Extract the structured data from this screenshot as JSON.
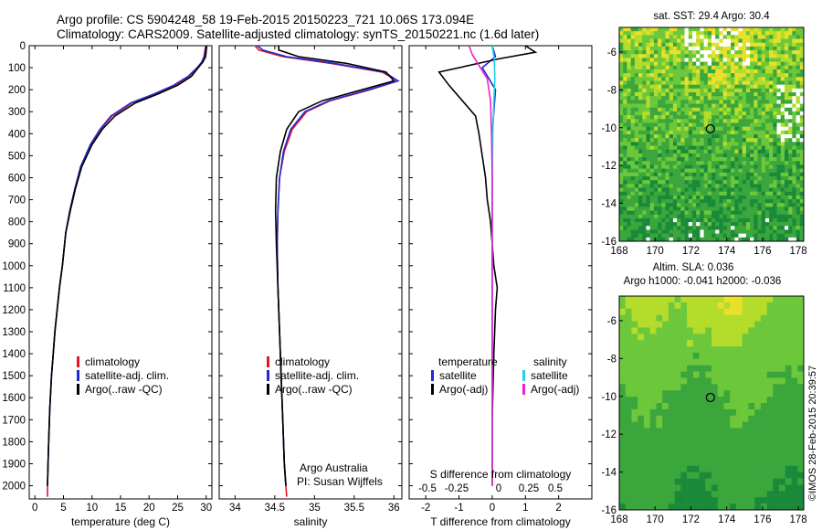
{
  "header": {
    "line1": "Argo profile: CS 5904248_58 19-Feb-2015 20150223_721 10.06S 173.094E",
    "line2": "Climatology: CARS2009. Satellite-adjusted climatology: synTS_20150221.nc (1.6d later)"
  },
  "colors": {
    "climatology": "#e8141e",
    "satellite": "#1f2bd6",
    "argo": "#000000",
    "satellite_salinity": "#22d3e6",
    "argo_salinity": "#ee22cc"
  },
  "chart_data": [
    {
      "type": "line",
      "id": "temperature",
      "xlabel": "temperature (deg C)",
      "ylabel": "",
      "xlim": [
        -1,
        31
      ],
      "ylim": [
        2060,
        0
      ],
      "xticks": [
        0,
        5,
        10,
        15,
        20,
        25,
        30
      ],
      "yticks": [
        0,
        100,
        200,
        300,
        400,
        500,
        600,
        700,
        800,
        900,
        1000,
        1100,
        1200,
        1300,
        1400,
        1500,
        1600,
        1700,
        1800,
        1900,
        2000
      ],
      "legend": [
        "climatology",
        "satellite-adj. clim.",
        "Argo(..raw -QC)"
      ],
      "series": [
        {
          "name": "climatology",
          "color": "#e8141e",
          "x": [
            29.9,
            29.6,
            29.2,
            28.5,
            27.0,
            24.5,
            21.0,
            17.0,
            13.5,
            11.5,
            9.8,
            8.0,
            7.0,
            6.1,
            5.4,
            4.8,
            4.3,
            3.9,
            3.5,
            3.2,
            2.9,
            2.6,
            2.4,
            2.3,
            2.2,
            2.2
          ],
          "y": [
            0,
            50,
            75,
            100,
            140,
            180,
            220,
            260,
            320,
            380,
            450,
            550,
            650,
            750,
            850,
            1000,
            1100,
            1200,
            1300,
            1400,
            1500,
            1650,
            1800,
            1900,
            2000,
            2050
          ]
        },
        {
          "name": "satellite-adj. clim.",
          "color": "#1f2bd6",
          "x": [
            30.0,
            29.7,
            29.2,
            28.4,
            26.8,
            24.3,
            20.8,
            16.8,
            13.3,
            11.4,
            9.7,
            8.0,
            7.0,
            6.1,
            5.4,
            4.8,
            4.3,
            3.9,
            3.5,
            3.2,
            2.9,
            2.6,
            2.4,
            2.3,
            2.2
          ],
          "y": [
            0,
            50,
            75,
            100,
            140,
            180,
            220,
            260,
            320,
            380,
            450,
            550,
            650,
            750,
            850,
            1000,
            1100,
            1200,
            1300,
            1400,
            1500,
            1650,
            1800,
            1900,
            2000
          ]
        },
        {
          "name": "Argo(..raw -QC)",
          "color": "#000000",
          "x": [
            30.1,
            29.9,
            29.4,
            28.6,
            27.4,
            25.0,
            21.5,
            17.6,
            14.0,
            11.8,
            10.0,
            8.2,
            7.1,
            6.2,
            5.4,
            4.8,
            4.3,
            3.9,
            3.5,
            3.2,
            2.9,
            2.6,
            2.4,
            2.3,
            2.2
          ],
          "y": [
            0,
            50,
            75,
            100,
            140,
            180,
            220,
            260,
            320,
            380,
            450,
            550,
            650,
            750,
            850,
            1000,
            1100,
            1200,
            1300,
            1400,
            1500,
            1650,
            1800,
            1900,
            2000
          ]
        }
      ]
    },
    {
      "type": "line",
      "id": "salinity",
      "xlabel": "salinity",
      "ylabel": "",
      "xlim": [
        33.8,
        36.1
      ],
      "ylim": [
        2060,
        0
      ],
      "xticks": [
        34,
        34.5,
        35,
        35.5,
        36
      ],
      "legend": [
        "climatology",
        "satellite-adj. clim.",
        "Argo(..raw -QC)"
      ],
      "annotation": [
        "Argo Australia",
        "PI: Susan Wijffels"
      ],
      "series": [
        {
          "name": "climatology",
          "color": "#e8141e",
          "x": [
            34.25,
            34.3,
            34.6,
            35.2,
            35.85,
            36.05,
            35.7,
            35.2,
            34.9,
            34.72,
            34.62,
            34.56,
            34.54,
            34.53,
            34.54,
            34.56,
            34.58,
            34.6,
            34.62,
            34.64,
            34.65
          ],
          "y": [
            0,
            20,
            50,
            80,
            120,
            160,
            200,
            250,
            300,
            380,
            480,
            600,
            750,
            900,
            1100,
            1300,
            1500,
            1700,
            1900,
            2000,
            2050
          ]
        },
        {
          "name": "satellite-adj. clim.",
          "color": "#1f2bd6",
          "x": [
            34.28,
            34.35,
            34.65,
            35.25,
            35.88,
            36.05,
            35.68,
            35.18,
            34.88,
            34.7,
            34.61,
            34.56,
            34.54,
            34.53,
            34.54,
            34.56,
            34.58,
            34.6,
            34.62,
            34.64
          ],
          "y": [
            0,
            20,
            50,
            80,
            120,
            160,
            200,
            250,
            300,
            380,
            480,
            600,
            750,
            900,
            1100,
            1300,
            1500,
            1700,
            1900,
            2000
          ]
        },
        {
          "name": "Argo(..raw -QC)",
          "color": "#000000",
          "x": [
            34.55,
            34.55,
            34.8,
            35.4,
            35.9,
            36.0,
            35.6,
            35.1,
            34.8,
            34.65,
            34.57,
            34.52,
            34.51,
            34.52,
            34.54,
            34.56,
            34.58,
            34.6,
            34.62,
            34.64
          ],
          "y": [
            0,
            20,
            50,
            80,
            120,
            160,
            200,
            250,
            300,
            380,
            480,
            600,
            750,
            900,
            1100,
            1300,
            1500,
            1700,
            1900,
            2000
          ]
        }
      ]
    },
    {
      "type": "line",
      "id": "difference",
      "xlabel": "T difference from climatology",
      "xlabel_top": "S difference from climatology",
      "xlim": [
        -2.5,
        3
      ],
      "ylim": [
        2060,
        0
      ],
      "xticks": [
        -2,
        -1,
        0,
        1,
        2
      ],
      "xticks_top": [
        -0.5,
        -0.25,
        0,
        0.25,
        0.5
      ],
      "xticklabels_top": [
        "-0.5",
        "-0.25",
        "0",
        "0.25",
        "0.5"
      ],
      "legend_left_title": "temperature",
      "legend_right_title": "salinity",
      "legend": [
        "satellite",
        "Argo(-adj)",
        "satellite",
        "Argo(-adj)"
      ],
      "series": [
        {
          "name": "satellite",
          "color": "#1f2bd6",
          "x": [
            0.0,
            0.1,
            -0.3,
            -0.1,
            0.1,
            0.05,
            0.0,
            0.0,
            0.0,
            0.0,
            0.0,
            0.0
          ],
          "y": [
            0,
            50,
            100,
            150,
            200,
            300,
            400,
            600,
            800,
            1200,
            1600,
            2000
          ]
        },
        {
          "name": "Argo(-adj)",
          "color": "#000000",
          "x": [
            1.0,
            1.3,
            0.2,
            -1.6,
            -1.3,
            -0.9,
            -0.5,
            -0.4,
            -0.3,
            -0.2,
            -0.15,
            -0.05,
            0.0,
            0.05,
            0.15,
            0.1,
            0.05,
            0.0,
            0.0
          ],
          "y": [
            0,
            30,
            60,
            120,
            180,
            250,
            320,
            400,
            500,
            600,
            700,
            800,
            900,
            1000,
            1100,
            1200,
            1400,
            1700,
            2000
          ]
        },
        {
          "name": "satellite",
          "color": "#22d3e6",
          "x": [
            0.0,
            0.06,
            0.08,
            0.05,
            0.02,
            0.0,
            0.0,
            0.0,
            0.0
          ],
          "y": [
            0,
            60,
            150,
            250,
            400,
            600,
            900,
            1400,
            2000
          ]
        },
        {
          "name": "Argo(-adj)",
          "color": "#ee22cc",
          "x": [
            -0.7,
            -0.6,
            -0.4,
            -0.15,
            -0.05,
            -0.02,
            0.0,
            0.0,
            0.0,
            0.0
          ],
          "y": [
            0,
            40,
            90,
            150,
            250,
            400,
            600,
            900,
            1400,
            2000
          ]
        }
      ]
    },
    {
      "type": "heatmap",
      "id": "sst-map",
      "title": "sat. SST: 29.4  Argo: 30.4",
      "xlim": [
        168,
        178.3
      ],
      "ylim": [
        -16,
        -4.7
      ],
      "xticks": [
        168,
        170,
        172,
        174,
        176,
        178
      ],
      "yticks": [
        -6,
        -8,
        -10,
        -12,
        -14,
        -16
      ],
      "marker": {
        "lon": 173.09,
        "lat": -10.06
      }
    },
    {
      "type": "heatmap",
      "id": "sla-map",
      "title": "Altim. SLA: 0.036",
      "subtitle": "Argo h1000: -0.041  h2000: -0.036",
      "xlim": [
        168,
        178.3
      ],
      "ylim": [
        -16,
        -4.7
      ],
      "xticks": [
        168,
        170,
        172,
        174,
        176,
        178
      ],
      "yticks": [
        -6,
        -8,
        -10,
        -12,
        -14,
        -16
      ],
      "marker": {
        "lon": 173.09,
        "lat": -10.06
      }
    }
  ],
  "footer": {
    "stamp": "©IMOS 28-Feb-2015 20:39:57"
  }
}
